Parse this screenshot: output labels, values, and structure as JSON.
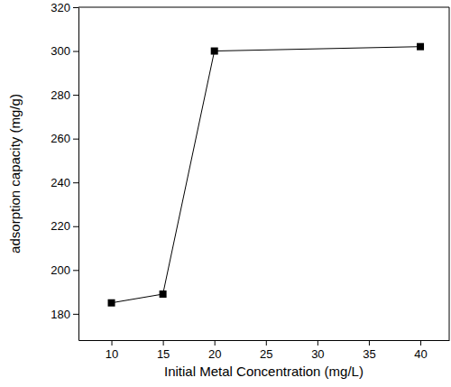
{
  "chart_data": {
    "type": "line",
    "x_label": "Initial Metal Concentration (mg/L)",
    "y_label": "adsorption capacity (mg/g)",
    "x": [
      10,
      15,
      20,
      40
    ],
    "values": [
      185,
      189,
      300,
      302
    ],
    "color": "#000000",
    "marker": "square",
    "line_style": "solid",
    "xlim": [
      6.8,
      42.8
    ],
    "xticks": [
      10,
      15,
      20,
      25,
      30,
      35,
      40
    ],
    "ylim": [
      168,
      320
    ],
    "yticks": [
      180,
      200,
      220,
      240,
      260,
      280,
      300,
      320
    ],
    "grid": false
  }
}
